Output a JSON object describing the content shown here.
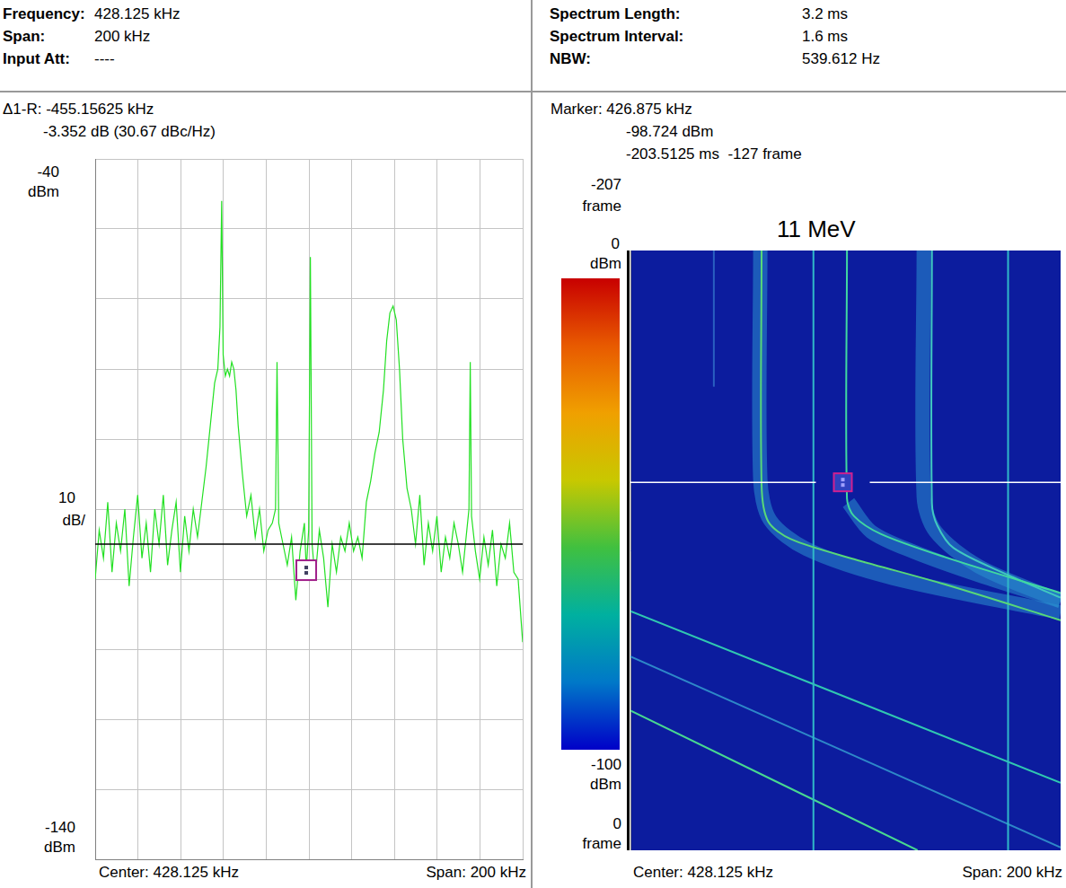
{
  "header": {
    "left": [
      [
        "Frequency:",
        "428.125 kHz"
      ],
      [
        "Span:",
        "200 kHz"
      ],
      [
        "Input Att:",
        "----"
      ]
    ],
    "right": [
      [
        "Spectrum Length:",
        "3.2 ms"
      ],
      [
        "Spectrum Interval:",
        "1.6 ms"
      ],
      [
        "NBW:",
        "539.612 Hz"
      ]
    ]
  },
  "chart_data": [
    {
      "type": "line",
      "readout": [
        "Δ1-R: -455.15625 kHz",
        "-3.352 dB (30.67 dBc/Hz)"
      ],
      "y_unit": "dBm",
      "y_div": 10,
      "y_div_unit": "dB/",
      "x_label_left": "Center: 428.125 kHz",
      "x_label_right": "Span: 200 kHz",
      "color": "#22e022",
      "x": [
        328.125,
        330,
        332,
        334,
        336,
        338,
        340,
        342,
        344,
        346,
        348,
        350,
        352,
        354,
        356,
        358,
        360,
        362,
        364,
        366,
        368,
        370,
        372,
        374,
        376,
        378,
        380,
        382,
        384,
        385.5,
        386.5,
        387.3,
        388,
        389,
        390,
        391,
        392,
        393,
        394,
        395,
        397,
        399,
        401,
        403,
        405,
        407,
        409,
        411,
        412.5,
        413.2,
        414,
        416,
        418,
        420,
        422,
        424,
        426,
        426.875,
        428,
        428.8,
        429.6,
        431,
        433,
        435,
        437,
        439,
        441,
        443,
        445,
        447,
        449,
        451,
        453,
        455,
        457,
        459,
        461,
        463,
        464.5,
        466,
        467.5,
        469,
        470.5,
        472,
        474,
        476,
        478,
        480,
        482,
        484,
        486,
        488,
        490,
        492,
        494,
        496,
        498,
        500,
        502,
        503,
        503.6,
        504.2,
        506,
        508,
        510,
        512,
        514,
        516,
        518,
        520,
        522,
        524,
        526,
        528.125
      ],
      "values": [
        -100,
        -93,
        -97,
        -89,
        -99,
        -92,
        -96,
        -90,
        -101,
        -94,
        -88,
        -97,
        -92,
        -99,
        -90,
        -95,
        -88,
        -98,
        -93,
        -89,
        -99,
        -91,
        -96,
        -90,
        -94,
        -89,
        -84,
        -78,
        -72,
        -70,
        -64,
        -46,
        -68,
        -71,
        -70,
        -71,
        -69,
        -70,
        -73,
        -78,
        -85,
        -91,
        -88,
        -94,
        -90,
        -96,
        -93,
        -92,
        -90,
        -69,
        -92,
        -95,
        -98,
        -94,
        -103,
        -96,
        -92,
        -98.7,
        -93,
        -54,
        -95,
        -100,
        -93,
        -97,
        -104,
        -95,
        -99,
        -94,
        -96,
        -92,
        -96,
        -94,
        -97,
        -89,
        -86,
        -82,
        -79,
        -73,
        -66,
        -62,
        -61,
        -63,
        -70,
        -80,
        -87,
        -90,
        -95,
        -88,
        -98,
        -92,
        -96,
        -91,
        -99,
        -94,
        -97,
        -92,
        -95,
        -99,
        -93,
        -90,
        -69,
        -91,
        -96,
        -100,
        -94,
        -98,
        -93,
        -101,
        -95,
        -97,
        -92,
        -99,
        -100,
        -109
      ],
      "xlim": [
        328.125,
        528.125
      ],
      "xticks": [
        328.125,
        348.125,
        368.125,
        388.125,
        408.125,
        428.125,
        448.125,
        468.125,
        488.125,
        508.125,
        528.125
      ],
      "ylim": [
        -140,
        -40
      ],
      "yticks": [
        -140,
        -130,
        -120,
        -110,
        -100,
        -90,
        -80,
        -70,
        -60,
        -50,
        -40
      ],
      "grid": true,
      "tick_labels": false,
      "reference_line": -95,
      "marker_point": {
        "x": 426.875,
        "y": -98.724
      }
    },
    {
      "type": "spectrogram",
      "readout": [
        "Marker: 426.875 kHz",
        "-98.724 dBm",
        "-203.5125 ms  -127 frame"
      ],
      "annotation": "11 MeV",
      "y_unit": "frame",
      "x_label_left": "Center: 428.125 kHz",
      "x_label_right": "Span: 200 kHz",
      "xlim": [
        328.125,
        528.125
      ],
      "ylim": [
        -207,
        0
      ],
      "grid": false,
      "tick_labels": false,
      "colorbar": {
        "range": [
          -100,
          0
        ],
        "unit": "dBm",
        "colors": [
          "#c80000",
          "#e85a00",
          "#f0a000",
          "#c8c800",
          "#40c040",
          "#00b0a0",
          "#0078c8",
          "#0000c8"
        ]
      },
      "marker_point": {
        "x": 426.875,
        "y": -127
      },
      "series": [
        {
          "x": [
            388.5,
            388.5,
            393,
            410,
            450,
            528.125
          ],
          "values": [
            -207,
            -128,
            -114,
            -104,
            -94,
            -82
          ],
          "color": "#2a90d0",
          "line_style": "band"
        },
        {
          "x": [
            464.5,
            464.5,
            470,
            490,
            528.125
          ],
          "values": [
            -207,
            -122,
            -110,
            -98,
            -86
          ],
          "color": "#2a90d0",
          "line_style": "band"
        },
        {
          "x": [
            429.5,
            440,
            460,
            490,
            528.125
          ],
          "values": [
            -120,
            -110,
            -103,
            -95,
            -86
          ],
          "color": "#2a90d0",
          "line_style": "band"
        },
        {
          "x": [
            389.1,
            389.1,
            392.1,
            402.7,
            432.1,
            474.2,
            528.125
          ],
          "values": [
            -207,
            -126,
            -113.6,
            -107.4,
            -100.5,
            -91.8,
            -79.4
          ],
          "color": "#58d878",
          "line_style": "solid"
        },
        {
          "x": [
            428.8,
            428.8,
            432.1,
            444.7,
            474.2,
            528.125
          ],
          "values": [
            -207,
            -121.4,
            -115.3,
            -109.1,
            -101.2,
            -88.8
          ],
          "color": "#40d8a0",
          "line_style": "solid"
        },
        {
          "x": [
            468.3,
            468.3,
            470.8,
            478.4,
            503.7,
            528.125
          ],
          "values": [
            -207,
            -119.8,
            -112.1,
            -104.3,
            -95,
            -87.2
          ],
          "color": "#40c8c0",
          "line_style": "solid"
        },
        {
          "x": [
            413.2,
            413.2
          ],
          "values": [
            -207,
            0
          ],
          "color": "#30b8c8",
          "line_style": "solid"
        },
        {
          "x": [
            503.7,
            503.7
          ],
          "values": [
            -207,
            0
          ],
          "color": "#30b8c8",
          "line_style": "solid"
        },
        {
          "x": [
            366.9,
            366.9
          ],
          "values": [
            -207,
            -160
          ],
          "color": "#2a60c0",
          "line_style": "solid"
        },
        {
          "x": [
            328.125,
            528.125
          ],
          "values": [
            -82.5,
            -23.3
          ],
          "color": "#30c8b0",
          "line_style": "solid"
        },
        {
          "x": [
            328.125,
            528.125
          ],
          "values": [
            -66.9,
            -1
          ],
          "color": "#2e88c8",
          "line_style": "solid"
        },
        {
          "x": [
            328.125,
            461.6
          ],
          "values": [
            -48.2,
            0
          ],
          "color": "#48d890",
          "line_style": "solid"
        }
      ]
    }
  ]
}
